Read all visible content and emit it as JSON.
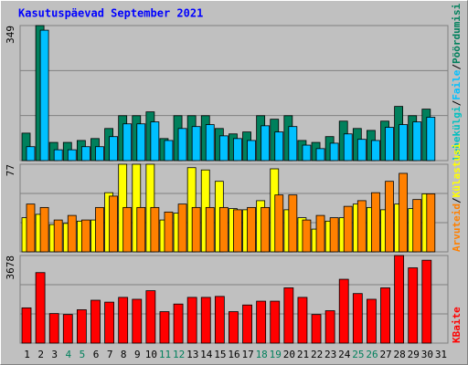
{
  "title": "Kasutuspäevad September 2021",
  "categories": [
    "1",
    "2",
    "3",
    "4",
    "5",
    "6",
    "7",
    "8",
    "9",
    "10",
    "11",
    "12",
    "13",
    "14",
    "15",
    "16",
    "17",
    "18",
    "19",
    "20",
    "21",
    "22",
    "23",
    "24",
    "25",
    "26",
    "27",
    "28",
    "29",
    "30",
    "31"
  ],
  "category_color": "#000000",
  "highlight_color": "#00805c",
  "highlighted": [
    3,
    4,
    10,
    11,
    17,
    18,
    24,
    25
  ],
  "separator": "/",
  "chart_data": [
    {
      "type": "bar",
      "ylim": [
        0,
        349
      ],
      "yticks": [
        349
      ],
      "extra_label": {
        "name": "Lehekülgi",
        "color": "#00c0c0"
      },
      "series": [
        {
          "name": "Pöördumisi",
          "color": "#00805c",
          "values": [
            71,
            349,
            47,
            47,
            52,
            57,
            83,
            116,
            116,
            126,
            57,
            116,
            116,
            116,
            83,
            69,
            74,
            116,
            107,
            116,
            52,
            47,
            62,
            102,
            83,
            78,
            102,
            140,
            116,
            133,
            null
          ]
        },
        {
          "name": "Faile",
          "color": "#00c0ff",
          "values": [
            36,
            337,
            28,
            28,
            36,
            36,
            62,
            95,
            95,
            100,
            52,
            83,
            88,
            93,
            64,
            57,
            52,
            90,
            74,
            88,
            40,
            31,
            45,
            69,
            55,
            52,
            86,
            93,
            100,
            112,
            null
          ]
        }
      ]
    },
    {
      "type": "bar",
      "ylim": [
        0,
        77
      ],
      "yticks": [
        77
      ],
      "series": [
        {
          "name": "Külastusi",
          "color": "#ffff00",
          "values": [
            30,
            33,
            24,
            25,
            27,
            28,
            52,
            77,
            77,
            77,
            28,
            34,
            74,
            72,
            62,
            38,
            37,
            45,
            73,
            37,
            30,
            20,
            27,
            30,
            42,
            39,
            37,
            42,
            38,
            51,
            null
          ]
        },
        {
          "name": "Arvuteid",
          "color": "#ff8000",
          "values": [
            42,
            39,
            28,
            32,
            28,
            39,
            49,
            39,
            39,
            39,
            35,
            42,
            39,
            39,
            39,
            37,
            39,
            39,
            50,
            50,
            28,
            32,
            30,
            40,
            45,
            52,
            62,
            69,
            46,
            51,
            null
          ]
        }
      ]
    },
    {
      "type": "bar",
      "ylim": [
        0,
        3678
      ],
      "yticks": [
        3678
      ],
      "series": [
        {
          "name": "KBaite",
          "color": "#ff0000",
          "values": [
            1480,
            2960,
            1240,
            1200,
            1400,
            1800,
            1720,
            1920,
            1840,
            2200,
            1320,
            1640,
            1920,
            1920,
            1960,
            1320,
            1600,
            1760,
            1760,
            2320,
            1920,
            1200,
            1360,
            2680,
            2080,
            1840,
            2320,
            3678,
            3160,
            3480,
            null
          ]
        }
      ]
    }
  ]
}
